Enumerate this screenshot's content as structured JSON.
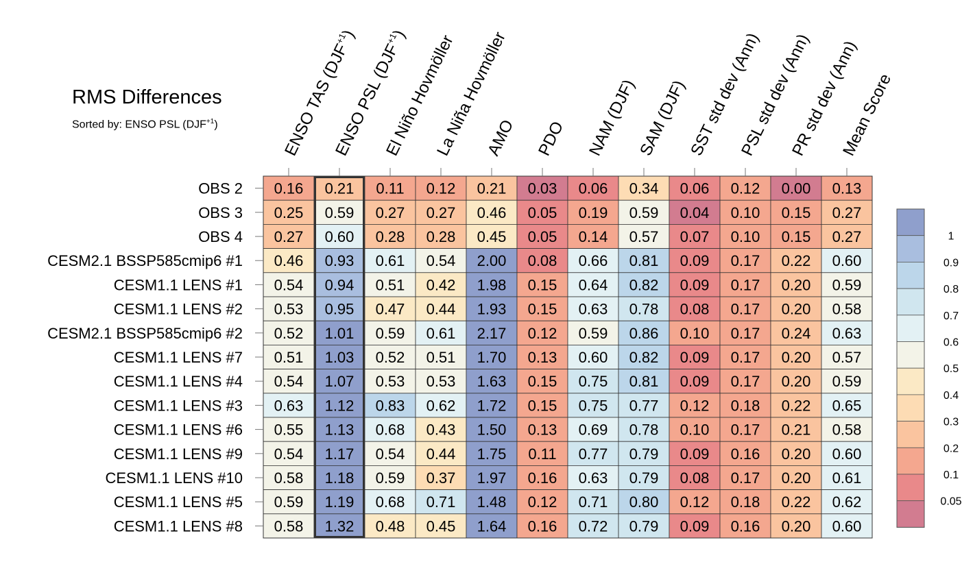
{
  "title": "RMS Differences",
  "subtitle": {
    "prefix": "Sorted by: ENSO PSL (DJF",
    "sup": "+1",
    "suffix": ")"
  },
  "chart_data": {
    "type": "heatmap",
    "title": "RMS Differences",
    "subtitle": "Sorted by: ENSO PSL (DJF+1)",
    "highlight_column": 1,
    "columns": [
      {
        "label": "ENSO TAS (DJF",
        "sup": "+1",
        "suffix": ")"
      },
      {
        "label": "ENSO PSL (DJF",
        "sup": "+1",
        "suffix": ")"
      },
      {
        "label": "El Niño Hovmöller"
      },
      {
        "label": "La Niña Hovmöller"
      },
      {
        "label": "AMO"
      },
      {
        "label": "PDO"
      },
      {
        "label": "NAM (DJF)"
      },
      {
        "label": "SAM (DJF)"
      },
      {
        "label": "SST std dev (Ann)"
      },
      {
        "label": "PSL std dev (Ann)"
      },
      {
        "label": "PR std dev (Ann)"
      },
      {
        "label": "Mean Score"
      }
    ],
    "rows": [
      "OBS 2",
      "OBS 3",
      "OBS 4",
      "CESM2.1 BSSP585cmip6 #1",
      "CESM1.1 LENS #1",
      "CESM1.1 LENS #2",
      "CESM2.1 BSSP585cmip6 #2",
      "CESM1.1 LENS #7",
      "CESM1.1 LENS #4",
      "CESM1.1 LENS #3",
      "CESM1.1 LENS #6",
      "CESM1.1 LENS #9",
      "CESM1.1 LENS #10",
      "CESM1.1 LENS #5",
      "CESM1.1 LENS #8"
    ],
    "values": [
      [
        "0.16",
        "0.21",
        "0.11",
        "0.12",
        "0.21",
        "0.03",
        "0.06",
        "0.34",
        "0.06",
        "0.12",
        "0.00",
        "0.13"
      ],
      [
        "0.25",
        "0.59",
        "0.27",
        "0.27",
        "0.46",
        "0.05",
        "0.19",
        "0.59",
        "0.04",
        "0.10",
        "0.15",
        "0.27"
      ],
      [
        "0.27",
        "0.60",
        "0.28",
        "0.28",
        "0.45",
        "0.05",
        "0.14",
        "0.57",
        "0.07",
        "0.10",
        "0.15",
        "0.27"
      ],
      [
        "0.46",
        "0.93",
        "0.61",
        "0.54",
        "2.00",
        "0.08",
        "0.66",
        "0.81",
        "0.09",
        "0.17",
        "0.22",
        "0.60"
      ],
      [
        "0.54",
        "0.94",
        "0.51",
        "0.42",
        "1.98",
        "0.15",
        "0.64",
        "0.82",
        "0.09",
        "0.17",
        "0.20",
        "0.59"
      ],
      [
        "0.53",
        "0.95",
        "0.47",
        "0.44",
        "1.93",
        "0.15",
        "0.63",
        "0.78",
        "0.08",
        "0.17",
        "0.20",
        "0.58"
      ],
      [
        "0.52",
        "1.01",
        "0.59",
        "0.61",
        "2.17",
        "0.12",
        "0.59",
        "0.86",
        "0.10",
        "0.17",
        "0.24",
        "0.63"
      ],
      [
        "0.51",
        "1.03",
        "0.52",
        "0.51",
        "1.70",
        "0.13",
        "0.60",
        "0.82",
        "0.09",
        "0.17",
        "0.20",
        "0.57"
      ],
      [
        "0.54",
        "1.07",
        "0.53",
        "0.53",
        "1.63",
        "0.15",
        "0.75",
        "0.81",
        "0.09",
        "0.17",
        "0.20",
        "0.59"
      ],
      [
        "0.63",
        "1.12",
        "0.83",
        "0.62",
        "1.72",
        "0.15",
        "0.75",
        "0.77",
        "0.12",
        "0.18",
        "0.22",
        "0.65"
      ],
      [
        "0.55",
        "1.13",
        "0.68",
        "0.43",
        "1.50",
        "0.13",
        "0.69",
        "0.78",
        "0.10",
        "0.17",
        "0.21",
        "0.58"
      ],
      [
        "0.54",
        "1.17",
        "0.54",
        "0.44",
        "1.75",
        "0.11",
        "0.77",
        "0.79",
        "0.09",
        "0.16",
        "0.20",
        "0.60"
      ],
      [
        "0.58",
        "1.18",
        "0.59",
        "0.37",
        "1.97",
        "0.16",
        "0.63",
        "0.79",
        "0.08",
        "0.17",
        "0.20",
        "0.61"
      ],
      [
        "0.59",
        "1.19",
        "0.68",
        "0.71",
        "1.48",
        "0.12",
        "0.71",
        "0.80",
        "0.12",
        "0.18",
        "0.22",
        "0.62"
      ],
      [
        "0.58",
        "1.32",
        "0.48",
        "0.45",
        "1.64",
        "0.16",
        "0.72",
        "0.79",
        "0.09",
        "0.16",
        "0.20",
        "0.60"
      ]
    ],
    "colorbar": {
      "tick_labels": [
        "1",
        "0.9",
        "0.8",
        "0.7",
        "0.6",
        "0.5",
        "0.4",
        "0.3",
        "0.2",
        "0.1",
        "0.05"
      ],
      "bins_top_to_bottom": [
        {
          "min": 1.0,
          "color": "#8f9fcc"
        },
        {
          "min": 0.9,
          "color": "#a9bedf"
        },
        {
          "min": 0.8,
          "color": "#bcd6ea"
        },
        {
          "min": 0.7,
          "color": "#d0e6ef"
        },
        {
          "min": 0.6,
          "color": "#e3f1f4"
        },
        {
          "min": 0.5,
          "color": "#f3f3e8"
        },
        {
          "min": 0.4,
          "color": "#fbe9c5"
        },
        {
          "min": 0.3,
          "color": "#fddcb4"
        },
        {
          "min": 0.2,
          "color": "#fac49f"
        },
        {
          "min": 0.1,
          "color": "#f4a78f"
        },
        {
          "min": 0.05,
          "color": "#e9898a"
        },
        {
          "min": -1,
          "color": "#d27c90"
        }
      ]
    },
    "highlight_color": "#333333"
  }
}
